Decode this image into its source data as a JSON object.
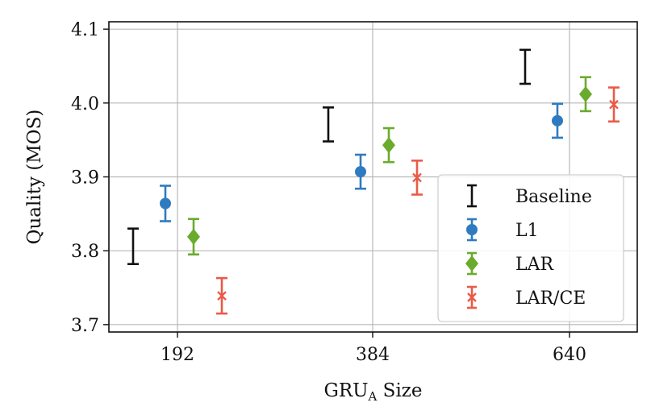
{
  "chart_data": {
    "type": "scatter",
    "xlabel": "GRU",
    "xlabel_sub": "A",
    "xlabel_tail": " Size",
    "ylabel": "Quality (MOS)",
    "categories": [
      "192",
      "384",
      "640"
    ],
    "ylim": [
      3.69,
      4.11
    ],
    "yticks": [
      "3.7",
      "3.8",
      "3.9",
      "4.0",
      "4.1"
    ],
    "grid": true,
    "legend_position": "lower-right",
    "series": [
      {
        "name": "Baseline",
        "marker": "none",
        "color": "#111111",
        "values": [
          3.806,
          3.971,
          4.049
        ],
        "errors": [
          0.024,
          0.023,
          0.023
        ]
      },
      {
        "name": "L1",
        "marker": "circle",
        "color": "#2f7bbf",
        "values": [
          3.864,
          3.907,
          3.976
        ],
        "errors": [
          0.024,
          0.023,
          0.023
        ]
      },
      {
        "name": "LAR",
        "marker": "diamond",
        "color": "#6aab2e",
        "values": [
          3.819,
          3.943,
          4.012
        ],
        "errors": [
          0.024,
          0.023,
          0.023
        ]
      },
      {
        "name": "LAR/CE",
        "marker": "x",
        "color": "#ea5a47",
        "values": [
          3.739,
          3.899,
          3.998
        ],
        "errors": [
          0.024,
          0.023,
          0.023
        ]
      }
    ]
  }
}
